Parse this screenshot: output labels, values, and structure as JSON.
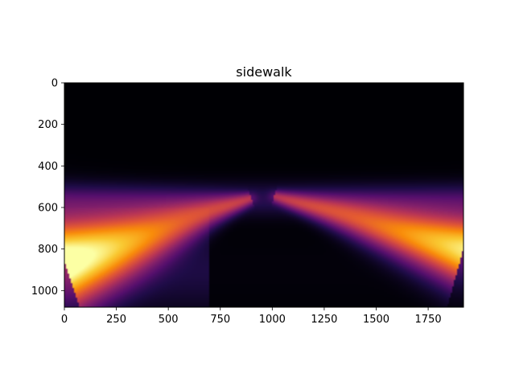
{
  "chart_data": {
    "type": "heatmap",
    "title": "sidewalk",
    "xlabel": "",
    "ylabel": "",
    "xlim": [
      0,
      1920
    ],
    "ylim": [
      1080,
      0
    ],
    "xticks": [
      0,
      250,
      500,
      750,
      1000,
      1250,
      1500,
      1750
    ],
    "xtick_labels": [
      "0",
      "250",
      "500",
      "750",
      "1000",
      "1250",
      "1500",
      "1750"
    ],
    "yticks": [
      0,
      200,
      400,
      600,
      800,
      1000
    ],
    "ytick_labels": [
      "0",
      "200",
      "400",
      "600",
      "800",
      "1000"
    ],
    "colormap": "inferno",
    "value_range": [
      0,
      1
    ],
    "grid": false,
    "bands": [
      {
        "from": [
          0,
          860
        ],
        "to": [
          900,
          555
        ],
        "spread_start": 160,
        "spread_end": 20,
        "peak": 1.0
      },
      {
        "from": [
          1920,
          800
        ],
        "to": [
          1010,
          545
        ],
        "spread_start": 120,
        "spread_end": 20,
        "peak": 0.95
      }
    ],
    "horizon": {
      "y": 560,
      "spread": 55,
      "peak": 0.25
    }
  }
}
